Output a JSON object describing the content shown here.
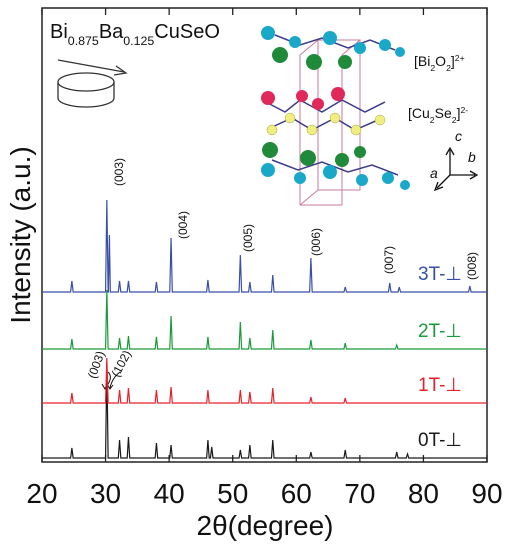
{
  "chart_data": {
    "type": "line",
    "formula": [
      {
        "text": "Bi"
      },
      {
        "text": "0.875",
        "sub": true
      },
      {
        "text": "Ba"
      },
      {
        "text": "0.125",
        "sub": true
      },
      {
        "text": "CuSeO"
      }
    ],
    "layer_labels": [
      [
        {
          "text": "[Bi"
        },
        {
          "text": "2",
          "sub": true
        },
        {
          "text": "O"
        },
        {
          "text": "2",
          "sub": true
        },
        {
          "text": "]"
        },
        {
          "text": "2+",
          "sup": true
        }
      ],
      [
        {
          "text": "[Cu"
        },
        {
          "text": "2",
          "sub": true
        },
        {
          "text": "Se"
        },
        {
          "text": "2",
          "sub": true
        },
        {
          "text": "]"
        },
        {
          "text": "2-",
          "sup": true
        }
      ]
    ],
    "axis_letters": [
      "a",
      "b",
      "c"
    ],
    "xlabel": "2θ(degree)",
    "ylabel": "Intensity (a.u.)",
    "xlim": [
      20,
      90
    ],
    "xticks": [
      20,
      30,
      40,
      50,
      60,
      70,
      80,
      90
    ],
    "ylim": [
      0,
      454
    ],
    "annotations": [
      "(003)",
      "(004)",
      "(005)",
      "(006)",
      "(007)",
      "(008)",
      "(003)",
      "(102)"
    ],
    "series": [
      {
        "name": "0T-⊥",
        "color": "#1a1a1a",
        "x": [
          20,
          24.5,
          24.7,
          24.9,
          30.0,
          30.2,
          30.4,
          32.0,
          32.2,
          32.4,
          33.4,
          33.6,
          33.8,
          37.8,
          38.0,
          38.2,
          40.1,
          40.3,
          40.5,
          45.9,
          46.1,
          46.3,
          46.5,
          46.7,
          46.9,
          51.0,
          51.2,
          51.4,
          52.5,
          52.7,
          52.9,
          56.1,
          56.3,
          56.5,
          62.1,
          62.3,
          62.5,
          67.5,
          67.7,
          67.9,
          75.6,
          75.8,
          76.0,
          77.3,
          77.5,
          77.7,
          90
        ],
        "values": [
          4,
          4,
          14,
          4,
          4,
          100,
          4,
          4,
          22,
          4,
          4,
          25,
          4,
          4,
          19,
          4,
          4,
          17,
          4,
          4,
          22,
          4,
          4,
          15,
          4,
          4,
          12,
          4,
          4,
          17,
          4,
          4,
          22,
          4,
          4,
          10,
          4,
          4,
          12,
          4,
          4,
          10,
          4,
          4,
          8,
          4,
          4
        ]
      },
      {
        "name": "1T-⊥",
        "color": "#e8202a",
        "x": [
          20,
          24.5,
          24.7,
          24.9,
          30.0,
          30.2,
          30.4,
          32.0,
          32.2,
          32.4,
          33.4,
          33.6,
          33.8,
          37.8,
          38.0,
          38.2,
          40.1,
          40.3,
          40.5,
          45.9,
          46.1,
          46.3,
          51.0,
          51.2,
          51.4,
          52.5,
          52.7,
          52.9,
          56.1,
          56.3,
          56.5,
          62.1,
          62.3,
          62.5,
          67.5,
          67.7,
          67.9,
          90
        ],
        "values": [
          59,
          59,
          69,
          59,
          59,
          104,
          59,
          59,
          72,
          59,
          59,
          74,
          59,
          59,
          72,
          59,
          59,
          75,
          59,
          59,
          72,
          59,
          59,
          72,
          59,
          59,
          70,
          59,
          59,
          74,
          59,
          59,
          65,
          59,
          59,
          64,
          59,
          59
        ]
      },
      {
        "name": "2T-⊥",
        "color": "#1a9a3a",
        "x": [
          20,
          24.5,
          24.7,
          24.9,
          30.0,
          30.2,
          30.4,
          32.0,
          32.2,
          32.4,
          33.4,
          33.6,
          33.8,
          37.8,
          38.0,
          38.2,
          40.1,
          40.3,
          40.5,
          45.9,
          46.1,
          46.3,
          51.0,
          51.2,
          51.4,
          52.5,
          52.7,
          52.9,
          56.1,
          56.3,
          56.5,
          62.1,
          62.3,
          62.5,
          67.5,
          67.7,
          67.9,
          75.6,
          75.8,
          76.0,
          90
        ],
        "values": [
          113,
          113,
          123,
          113,
          113,
          172,
          113,
          113,
          124,
          113,
          113,
          126,
          113,
          113,
          125,
          113,
          113,
          146,
          113,
          113,
          125,
          113,
          113,
          140,
          113,
          113,
          124,
          113,
          113,
          132,
          113,
          113,
          122,
          113,
          113,
          119,
          113,
          113,
          117,
          113,
          113
        ]
      },
      {
        "name": "3T-⊥",
        "color": "#3a4fa8",
        "x": [
          20,
          24.5,
          24.7,
          24.9,
          30.0,
          30.2,
          30.4,
          30.45,
          30.6,
          30.75,
          32.0,
          32.2,
          32.4,
          33.4,
          33.6,
          33.8,
          37.8,
          38.0,
          38.2,
          40.1,
          40.3,
          40.5,
          45.9,
          46.1,
          46.3,
          51.0,
          51.2,
          51.4,
          52.5,
          52.7,
          52.9,
          56.1,
          56.3,
          56.5,
          62.1,
          62.3,
          62.5,
          67.5,
          67.7,
          67.9,
          74.5,
          74.7,
          74.9,
          76.0,
          76.2,
          76.4,
          87.1,
          87.3,
          87.5,
          90
        ],
        "values": [
          170,
          170,
          181,
          170,
          170,
          262,
          170,
          170,
          227,
          170,
          170,
          181,
          170,
          170,
          181,
          170,
          170,
          180,
          170,
          170,
          224,
          170,
          170,
          182,
          170,
          170,
          207,
          170,
          170,
          180,
          170,
          170,
          187,
          170,
          170,
          204,
          170,
          170,
          175,
          170,
          170,
          179,
          170,
          170,
          175,
          170,
          170,
          176,
          170,
          170
        ]
      }
    ]
  }
}
